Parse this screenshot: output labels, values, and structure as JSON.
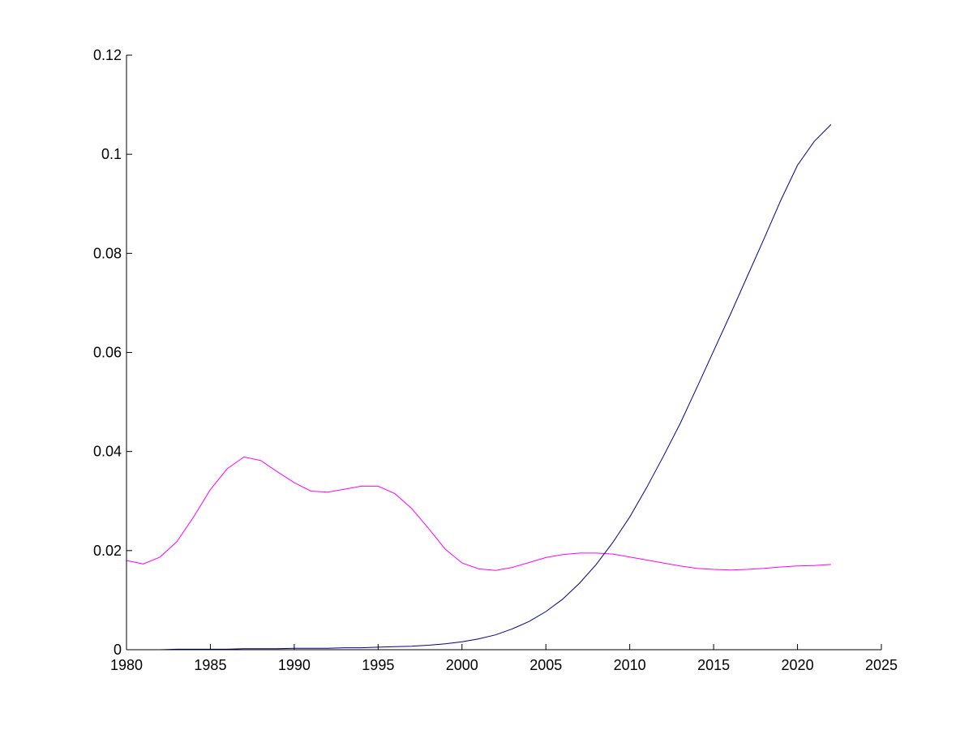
{
  "chart_data": {
    "type": "line",
    "title": "",
    "xlabel": "",
    "ylabel": "",
    "xlim": [
      1980,
      2025
    ],
    "ylim": [
      0,
      0.12
    ],
    "x_ticks": [
      "1980",
      "1985",
      "1990",
      "1995",
      "2000",
      "2005",
      "2010",
      "2015",
      "2020",
      "2025"
    ],
    "y_ticks": [
      "0",
      "0.02",
      "0.04",
      "0.06",
      "0.08",
      "0.1",
      "0.12"
    ],
    "grid": false,
    "legend": false,
    "series": [
      {
        "color": "#ff00ff",
        "x": [
          1980,
          1981,
          1982,
          1983,
          1984,
          1985,
          1986,
          1987,
          1988,
          1989,
          1990,
          1991,
          1992,
          1993,
          1994,
          1995,
          1996,
          1997,
          1998,
          1999,
          2000,
          2001,
          2002,
          2003,
          2004,
          2005,
          2006,
          2007,
          2008,
          2009,
          2010,
          2011,
          2012,
          2013,
          2014,
          2015,
          2016,
          2017,
          2018,
          2019,
          2020,
          2021,
          2022
        ],
        "values": [
          0.018,
          0.0173,
          0.0187,
          0.0218,
          0.0268,
          0.0323,
          0.0365,
          0.0389,
          0.0382,
          0.0359,
          0.0337,
          0.032,
          0.0318,
          0.0324,
          0.033,
          0.033,
          0.0315,
          0.0285,
          0.0245,
          0.0203,
          0.0175,
          0.0163,
          0.016,
          0.0166,
          0.0176,
          0.0186,
          0.0192,
          0.0195,
          0.0195,
          0.0193,
          0.0187,
          0.0181,
          0.0175,
          0.0169,
          0.0164,
          0.0162,
          0.0161,
          0.0162,
          0.0164,
          0.0167,
          0.0169,
          0.017,
          0.0172
        ]
      },
      {
        "color": "#00008b",
        "x": [
          1980,
          1981,
          1982,
          1983,
          1984,
          1985,
          1986,
          1987,
          1988,
          1989,
          1990,
          1991,
          1992,
          1993,
          1994,
          1995,
          1996,
          1997,
          1998,
          1999,
          2000,
          2001,
          2002,
          2003,
          2004,
          2005,
          2006,
          2007,
          2008,
          2009,
          2010,
          2011,
          2012,
          2013,
          2014,
          2015,
          2016,
          2017,
          2018,
          2019,
          2020,
          2021,
          2022
        ],
        "values": [
          0.0,
          0.0,
          0.0,
          0.0001,
          0.0001,
          0.0001,
          0.0001,
          0.0002,
          0.0002,
          0.0002,
          0.0003,
          0.0003,
          0.0003,
          0.0004,
          0.0004,
          0.0005,
          0.0006,
          0.0007,
          0.0009,
          0.0012,
          0.0016,
          0.0022,
          0.003,
          0.0042,
          0.0057,
          0.0077,
          0.0102,
          0.0134,
          0.0172,
          0.0217,
          0.0268,
          0.0327,
          0.039,
          0.0456,
          0.0529,
          0.0603,
          0.0677,
          0.0753,
          0.0829,
          0.0907,
          0.0978,
          0.1026,
          0.106
        ]
      }
    ]
  }
}
